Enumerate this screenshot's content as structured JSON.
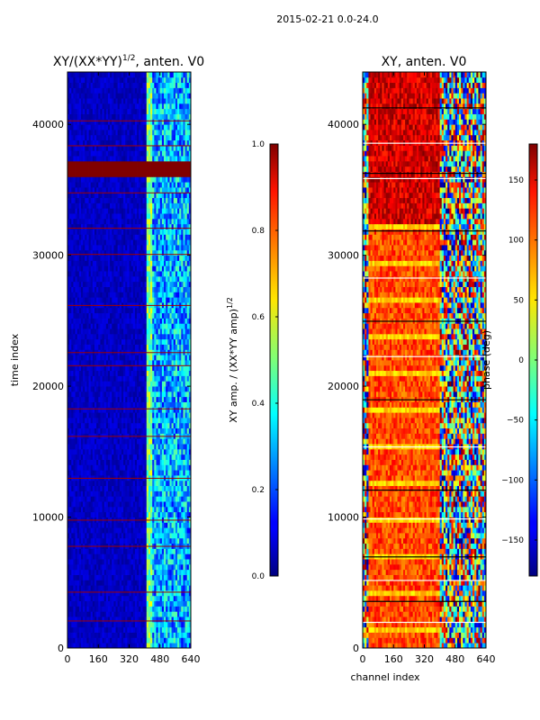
{
  "figure": {
    "suptitle": "2015-02-21 0.0-24.0"
  },
  "chart_data": [
    {
      "type": "heatmap",
      "title": "XY/(XX*YY)",
      "title_superscript": "1/2",
      "title_suffix": ", anten. V0",
      "xlabel": "",
      "ylabel": "time index",
      "xlim": [
        0,
        640
      ],
      "ylim": [
        0,
        44000
      ],
      "xticks": [
        0,
        160,
        320,
        480,
        640
      ],
      "xtick_labels": [
        "0",
        "160",
        "320",
        "480",
        "640"
      ],
      "yticks": [
        0,
        10000,
        20000,
        30000,
        40000
      ],
      "ytick_labels": [
        "0",
        "10000",
        "20000",
        "30000",
        "40000"
      ],
      "colorbar": {
        "label": "XY amp. / (XX*YY amp)",
        "label_superscript": "1/2",
        "range": [
          0.0,
          1.0
        ],
        "ticks": [
          0.0,
          0.2,
          0.4,
          0.6,
          0.8,
          1.0
        ],
        "tick_labels": [
          "0.0",
          "0.2",
          "0.4",
          "0.6",
          "0.8",
          "1.0"
        ],
        "colormap": "jet"
      },
      "description_values": {
        "background_level": 0.05,
        "high_channel_band": [
          410,
          640
        ],
        "high_channel_level": 0.3,
        "bright_column_channels": [
          410,
          440
        ],
        "bright_column_level": 0.5,
        "flagged_time_band": [
          35800,
          36800
        ],
        "flagged_level": 1.0
      }
    },
    {
      "type": "heatmap",
      "title": "XY, anten. V0",
      "xlabel": "channel index",
      "ylabel": "",
      "xlim": [
        0,
        640
      ],
      "ylim": [
        0,
        44000
      ],
      "xticks": [
        0,
        160,
        320,
        480,
        640
      ],
      "xtick_labels": [
        "0",
        "160",
        "320",
        "480",
        "640"
      ],
      "yticks": [
        0,
        10000,
        20000,
        30000,
        40000
      ],
      "ytick_labels": [
        "0",
        "10000",
        "20000",
        "30000",
        "40000"
      ],
      "colorbar": {
        "label": "phase (deg)",
        "range": [
          -180,
          180
        ],
        "ticks": [
          -150,
          -100,
          -50,
          0,
          50,
          100,
          150
        ],
        "tick_labels": [
          "−150",
          "−100",
          "−50",
          "0",
          "50",
          "100",
          "150"
        ],
        "colormap": "jet"
      },
      "description_values": {
        "low_channel_band": [
          0,
          400
        ],
        "low_channel_phase_upper": 150,
        "low_channel_phase_lower": 110,
        "high_channel_band": [
          400,
          640
        ],
        "high_channel_phase": "mixed",
        "noisy_channel_band": [
          0,
          30
        ]
      }
    }
  ]
}
